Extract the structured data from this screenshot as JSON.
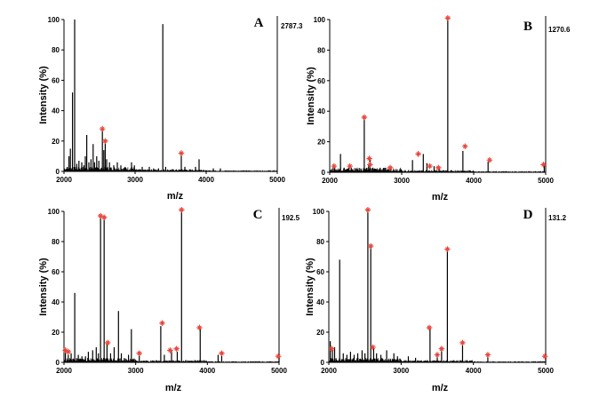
{
  "chart_data": [
    {
      "type": "spectrum",
      "panel_label": "A",
      "max_intensity_label": "2787.3",
      "xlabel": "m/z",
      "ylabel": "Intensity (%)",
      "xlim": [
        2000,
        5000
      ],
      "ylim": [
        0,
        100
      ],
      "xticks": [
        "2000",
        "3000",
        "4000",
        "5000"
      ],
      "yticks": [
        "0",
        "20",
        "40",
        "60",
        "80",
        "100"
      ],
      "peaks": [
        [
          2045,
          3
        ],
        [
          2070,
          10
        ],
        [
          2090,
          15
        ],
        [
          2120,
          52
        ],
        [
          2150,
          100
        ],
        [
          2180,
          5
        ],
        [
          2210,
          7
        ],
        [
          2250,
          6
        ],
        [
          2280,
          4
        ],
        [
          2300,
          10
        ],
        [
          2320,
          24
        ],
        [
          2350,
          6
        ],
        [
          2380,
          8
        ],
        [
          2410,
          18
        ],
        [
          2430,
          6
        ],
        [
          2460,
          10
        ],
        [
          2490,
          7
        ],
        [
          2540,
          28
        ],
        [
          2560,
          14
        ],
        [
          2580,
          20
        ],
        [
          2600,
          8
        ],
        [
          2640,
          6
        ],
        [
          2700,
          4
        ],
        [
          2750,
          6
        ],
        [
          2800,
          4
        ],
        [
          2860,
          3
        ],
        [
          2950,
          6
        ],
        [
          2990,
          4
        ],
        [
          3100,
          3
        ],
        [
          3200,
          3
        ],
        [
          3260,
          2
        ],
        [
          3330,
          2
        ],
        [
          3390,
          97
        ],
        [
          3430,
          3
        ],
        [
          3650,
          12
        ],
        [
          3700,
          3
        ],
        [
          3850,
          3
        ],
        [
          3900,
          8
        ],
        [
          4100,
          2
        ],
        [
          4200,
          2
        ]
      ],
      "marked_peaks": [
        [
          2540,
          28
        ],
        [
          2580,
          20
        ],
        [
          3650,
          12
        ]
      ]
    },
    {
      "type": "spectrum",
      "panel_label": "B",
      "max_intensity_label": "1270.6",
      "xlabel": "m/z",
      "ylabel": "Intensity (%)",
      "xlim": [
        2000,
        5000
      ],
      "ylim": [
        0,
        100
      ],
      "xticks": [
        "2000",
        "3000",
        "4000",
        "5000"
      ],
      "yticks": [
        "0",
        "20",
        "40",
        "60",
        "80",
        "100"
      ],
      "peaks": [
        [
          2060,
          4
        ],
        [
          2150,
          12
        ],
        [
          2200,
          3
        ],
        [
          2300,
          3
        ],
        [
          2480,
          35
        ],
        [
          2540,
          5
        ],
        [
          2560,
          8
        ],
        [
          2600,
          3
        ],
        [
          2700,
          3
        ],
        [
          2850,
          3
        ],
        [
          3150,
          8
        ],
        [
          3300,
          12
        ],
        [
          3350,
          6
        ],
        [
          3450,
          4
        ],
        [
          3520,
          3
        ],
        [
          3640,
          100
        ],
        [
          3850,
          14
        ],
        [
          4200,
          7
        ],
        [
          4980,
          5
        ]
      ],
      "marked_peaks": [
        [
          2060,
          4
        ],
        [
          2280,
          4
        ],
        [
          2480,
          36
        ],
        [
          2550,
          9
        ],
        [
          2560,
          5
        ],
        [
          2840,
          3
        ],
        [
          3230,
          12
        ],
        [
          3390,
          4
        ],
        [
          3510,
          3
        ],
        [
          3640,
          101
        ],
        [
          3880,
          17
        ],
        [
          4220,
          8
        ],
        [
          4970,
          5
        ]
      ]
    },
    {
      "type": "spectrum",
      "panel_label": "C",
      "max_intensity_label": "192.5",
      "xlabel": "m/z",
      "ylabel": "Intensity (%)",
      "xlim": [
        2000,
        5000
      ],
      "ylim": [
        0,
        100
      ],
      "xticks": [
        "2000",
        "3000",
        "4000",
        "5000"
      ],
      "yticks": [
        "0",
        "20",
        "40",
        "60",
        "80",
        "100"
      ],
      "peaks": [
        [
          2020,
          8
        ],
        [
          2060,
          5
        ],
        [
          2100,
          6
        ],
        [
          2150,
          46
        ],
        [
          2200,
          5
        ],
        [
          2250,
          4
        ],
        [
          2300,
          4
        ],
        [
          2340,
          7
        ],
        [
          2400,
          8
        ],
        [
          2450,
          10
        ],
        [
          2480,
          6
        ],
        [
          2510,
          96
        ],
        [
          2560,
          95
        ],
        [
          2600,
          12
        ],
        [
          2650,
          6
        ],
        [
          2700,
          10
        ],
        [
          2760,
          34
        ],
        [
          2800,
          6
        ],
        [
          2900,
          5
        ],
        [
          2940,
          22
        ],
        [
          3050,
          5
        ],
        [
          3350,
          24
        ],
        [
          3400,
          5
        ],
        [
          3500,
          8
        ],
        [
          3580,
          7
        ],
        [
          3640,
          100
        ],
        [
          3900,
          22
        ],
        [
          4150,
          5
        ],
        [
          4200,
          5
        ],
        [
          5000,
          3
        ]
      ],
      "marked_peaks": [
        [
          2020,
          8
        ],
        [
          2060,
          7
        ],
        [
          2510,
          97
        ],
        [
          2560,
          96
        ],
        [
          2610,
          13
        ],
        [
          3050,
          6
        ],
        [
          3370,
          26
        ],
        [
          3480,
          8
        ],
        [
          3570,
          9
        ],
        [
          3640,
          101
        ],
        [
          3890,
          23
        ],
        [
          4200,
          6
        ],
        [
          4990,
          4
        ]
      ]
    },
    {
      "type": "spectrum",
      "panel_label": "D",
      "max_intensity_label": "131.2",
      "xlabel": "m/z",
      "ylabel": "Intensity (%)",
      "xlim": [
        2000,
        5000
      ],
      "ylim": [
        0,
        100
      ],
      "xticks": [
        "2000",
        "3000",
        "4000",
        "5000"
      ],
      "yticks": [
        "0",
        "20",
        "40",
        "60",
        "80",
        "100"
      ],
      "peaks": [
        [
          2020,
          14
        ],
        [
          2050,
          8
        ],
        [
          2080,
          10
        ],
        [
          2150,
          68
        ],
        [
          2200,
          6
        ],
        [
          2250,
          5
        ],
        [
          2300,
          7
        ],
        [
          2350,
          5
        ],
        [
          2400,
          6
        ],
        [
          2460,
          8
        ],
        [
          2500,
          6
        ],
        [
          2540,
          100
        ],
        [
          2580,
          77
        ],
        [
          2620,
          10
        ],
        [
          2660,
          6
        ],
        [
          2720,
          5
        ],
        [
          2800,
          8
        ],
        [
          2900,
          6
        ],
        [
          2950,
          4
        ],
        [
          3100,
          4
        ],
        [
          3200,
          3
        ],
        [
          3400,
          22
        ],
        [
          3500,
          5
        ],
        [
          3560,
          8
        ],
        [
          3640,
          74
        ],
        [
          3850,
          12
        ],
        [
          4200,
          4
        ],
        [
          5000,
          3
        ]
      ],
      "marked_peaks": [
        [
          2040,
          9
        ],
        [
          2540,
          101
        ],
        [
          2580,
          77
        ],
        [
          2610,
          10
        ],
        [
          3390,
          23
        ],
        [
          3500,
          5
        ],
        [
          3560,
          9
        ],
        [
          3640,
          75
        ],
        [
          3850,
          13
        ],
        [
          4200,
          5
        ],
        [
          4990,
          4
        ]
      ]
    }
  ]
}
